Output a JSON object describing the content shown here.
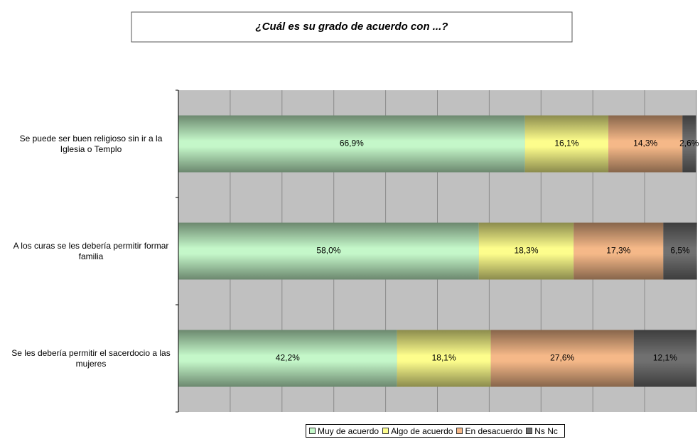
{
  "chart_data": {
    "type": "stacked-barh",
    "title": "¿Cuál es su grado de acuerdo con ...?",
    "categories": [
      "Se puede ser buen religioso sin ir a la Iglesia o Templo",
      "A los curas se les debería permitir formar familia",
      "Se les debería permitir el sacerdocio a las mujeres"
    ],
    "series": [
      {
        "name": "Muy de acuerdo",
        "color": "#c4f7c9",
        "values": [
          66.9,
          58.0,
          42.2
        ],
        "value_labels": [
          "66,9%",
          "58,0%",
          "42,2%"
        ]
      },
      {
        "name": "Algo de acuerdo",
        "color": "#fdfd8c",
        "values": [
          16.1,
          18.3,
          18.1
        ],
        "value_labels": [
          "16,1%",
          "18,3%",
          "18,1%"
        ]
      },
      {
        "name": "En desacuerdo",
        "color": "#f5b888",
        "values": [
          14.3,
          17.3,
          27.6
        ],
        "value_labels": [
          "14,3%",
          "17,3%",
          "27,6%"
        ]
      },
      {
        "name": "Ns Nc",
        "color": "#707070",
        "values": [
          2.6,
          6.5,
          12.1
        ],
        "value_labels": [
          "2,6%",
          "6,5%",
          "12,1%"
        ]
      }
    ],
    "xlim": [
      0,
      100
    ],
    "xticks": [
      0,
      10,
      20,
      30,
      40,
      50,
      60,
      70,
      80,
      90,
      100
    ],
    "grid": true,
    "legend": "bottom"
  }
}
